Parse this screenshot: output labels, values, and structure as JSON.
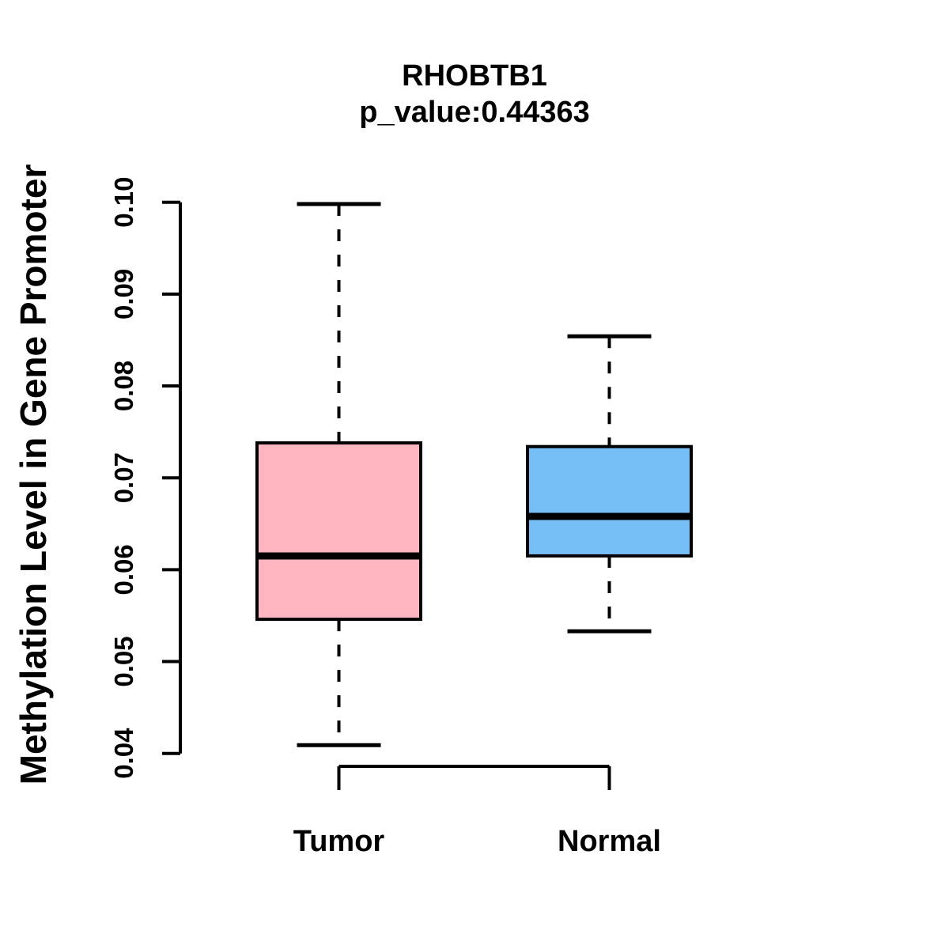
{
  "title": {
    "line1": "RHOBTB1",
    "line2": "p_value:0.44363"
  },
  "axes": {
    "y_label": "Methylation Level in Gene Promoter",
    "y_tick_labels": [
      "0.04",
      "0.05",
      "0.06",
      "0.07",
      "0.08",
      "0.09",
      "0.10"
    ],
    "x_categories": [
      "Tumor",
      "Normal"
    ]
  },
  "colors": {
    "tumor_fill": "#FFB6C1",
    "normal_fill": "#75BEF6",
    "line": "#000000",
    "background": "#FFFFFF"
  },
  "chart_data": {
    "type": "boxplot",
    "title": "RHOBTB1",
    "subtitle": "p_value:0.44363",
    "ylabel": "Methylation Level in Gene Promoter",
    "xlabel": "",
    "ylim": [
      0.04,
      0.1
    ],
    "yticks": [
      0.04,
      0.05,
      0.06,
      0.07,
      0.08,
      0.09,
      0.1
    ],
    "categories": [
      "Tumor",
      "Normal"
    ],
    "series": [
      {
        "name": "Tumor",
        "color": "#FFB6C1",
        "whisker_low": 0.0409,
        "q1": 0.0546,
        "median": 0.0615,
        "q3": 0.0738,
        "whisker_high": 0.0998
      },
      {
        "name": "Normal",
        "color": "#75BEF6",
        "whisker_low": 0.0533,
        "q1": 0.0615,
        "median": 0.0658,
        "q3": 0.0734,
        "whisker_high": 0.0854
      }
    ],
    "legend": "none",
    "grid": false,
    "whisker_style": "dashed"
  }
}
